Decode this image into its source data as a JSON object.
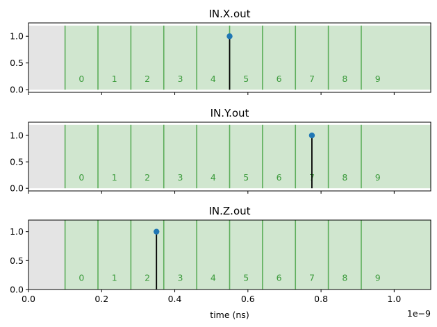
{
  "chart_data": [
    {
      "type": "stem",
      "title": "IN.X.out",
      "xlim": [
        0,
        1.1e-09
      ],
      "ylim": [
        -0.05,
        1.25
      ],
      "yticks": [
        0.0,
        0.5,
        1.0
      ],
      "ytick_labels": [
        "0.0",
        "0.5",
        "1.0"
      ],
      "x_tick_labels_shown": false,
      "shaded_region": {
        "x_start": 0,
        "x_end": 1e-10,
        "color": "#e4e4e4"
      },
      "bins": {
        "edges": [
          1e-10,
          1.9e-10,
          2.8e-10,
          3.7e-10,
          4.6e-10,
          5.5e-10,
          6.4e-10,
          7.3e-10,
          8.2e-10,
          9.1e-10,
          1.1e-09
        ],
        "labels": [
          "0",
          "1",
          "2",
          "3",
          "4",
          "5",
          "6",
          "7",
          "8",
          "9"
        ],
        "fill_color": "#d0e6cf",
        "line_color": "#5cad5a",
        "label_color": "#3a9a3a"
      },
      "stems": [
        {
          "x": 5.5e-10,
          "y": 1.0
        }
      ]
    },
    {
      "type": "stem",
      "title": "IN.Y.out",
      "xlim": [
        0,
        1.1e-09
      ],
      "ylim": [
        -0.05,
        1.25
      ],
      "yticks": [
        0.0,
        0.5,
        1.0
      ],
      "ytick_labels": [
        "0.0",
        "0.5",
        "1.0"
      ],
      "x_tick_labels_shown": false,
      "shaded_region": {
        "x_start": 0,
        "x_end": 1e-10,
        "color": "#e4e4e4"
      },
      "bins": {
        "edges": [
          1e-10,
          1.9e-10,
          2.8e-10,
          3.7e-10,
          4.6e-10,
          5.5e-10,
          6.4e-10,
          7.3e-10,
          8.2e-10,
          9.1e-10,
          1.1e-09
        ],
        "labels": [
          "0",
          "1",
          "2",
          "3",
          "4",
          "5",
          "6",
          "7",
          "8",
          "9"
        ],
        "fill_color": "#d0e6cf",
        "line_color": "#5cad5a",
        "label_color": "#3a9a3a"
      },
      "stems": [
        {
          "x": 7.75e-10,
          "y": 1.0
        }
      ]
    },
    {
      "type": "stem",
      "title": "IN.Z.out",
      "xlim": [
        0,
        1.1e-09
      ],
      "ylim": [
        0.0,
        1.2
      ],
      "yticks": [
        0.0,
        0.5,
        1.0
      ],
      "ytick_labels": [
        "0.0",
        "0.5",
        "1.0"
      ],
      "x_tick_labels_shown": true,
      "xticks": [
        0,
        2e-10,
        4e-10,
        6e-10,
        8e-10,
        1e-09
      ],
      "xtick_labels": [
        "0.0",
        "0.2",
        "0.4",
        "0.6",
        "0.8",
        "1.0"
      ],
      "xlabel": "time (ns)",
      "offset_text": "1e−9",
      "shaded_region": {
        "x_start": 0,
        "x_end": 1e-10,
        "color": "#e4e4e4"
      },
      "bins": {
        "edges": [
          1e-10,
          1.9e-10,
          2.8e-10,
          3.7e-10,
          4.6e-10,
          5.5e-10,
          6.4e-10,
          7.3e-10,
          8.2e-10,
          9.1e-10,
          1.1e-09
        ],
        "labels": [
          "0",
          "1",
          "2",
          "3",
          "4",
          "5",
          "6",
          "7",
          "8",
          "9"
        ],
        "fill_color": "#d0e6cf",
        "line_color": "#5cad5a",
        "label_color": "#3a9a3a"
      },
      "stems": [
        {
          "x": 3.5e-10,
          "y": 1.0
        }
      ]
    }
  ],
  "colors": {
    "marker": "#1f77b4",
    "stem": "#000000",
    "axis": "#000000",
    "text": "#000000"
  }
}
